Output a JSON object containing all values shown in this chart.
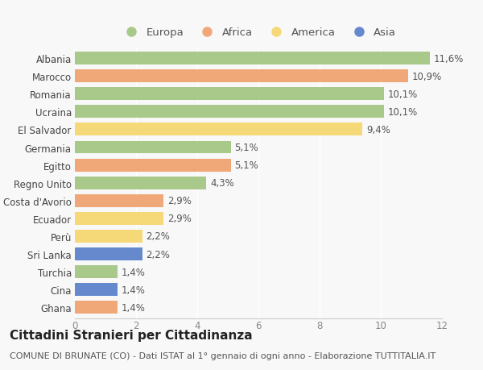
{
  "categories": [
    "Albania",
    "Marocco",
    "Romania",
    "Ucraina",
    "El Salvador",
    "Germania",
    "Egitto",
    "Regno Unito",
    "Costa d'Avorio",
    "Ecuador",
    "Perù",
    "Sri Lanka",
    "Turchia",
    "Cina",
    "Ghana"
  ],
  "values": [
    11.6,
    10.9,
    10.1,
    10.1,
    9.4,
    5.1,
    5.1,
    4.3,
    2.9,
    2.9,
    2.2,
    2.2,
    1.4,
    1.4,
    1.4
  ],
  "labels": [
    "11,6%",
    "10,9%",
    "10,1%",
    "10,1%",
    "9,4%",
    "5,1%",
    "5,1%",
    "4,3%",
    "2,9%",
    "2,9%",
    "2,2%",
    "2,2%",
    "1,4%",
    "1,4%",
    "1,4%"
  ],
  "continents": [
    "Europa",
    "Africa",
    "Europa",
    "Europa",
    "America",
    "Europa",
    "Africa",
    "Europa",
    "Africa",
    "America",
    "America",
    "Asia",
    "Europa",
    "Asia",
    "Africa"
  ],
  "colors": {
    "Europa": "#a8c98a",
    "Africa": "#f0a878",
    "America": "#f5d878",
    "Asia": "#6688cc"
  },
  "legend_order": [
    "Europa",
    "Africa",
    "America",
    "Asia"
  ],
  "xlim": [
    0,
    12
  ],
  "xticks": [
    0,
    2,
    4,
    6,
    8,
    10,
    12
  ],
  "title": "Cittadini Stranieri per Cittadinanza",
  "subtitle": "COMUNE DI BRUNATE (CO) - Dati ISTAT al 1° gennaio di ogni anno - Elaborazione TUTTITALIA.IT",
  "background_color": "#f8f8f8",
  "bar_height": 0.72,
  "label_fontsize": 8.5,
  "title_fontsize": 11,
  "subtitle_fontsize": 8,
  "category_fontsize": 8.5,
  "tick_fontsize": 8.5,
  "legend_fontsize": 9.5
}
